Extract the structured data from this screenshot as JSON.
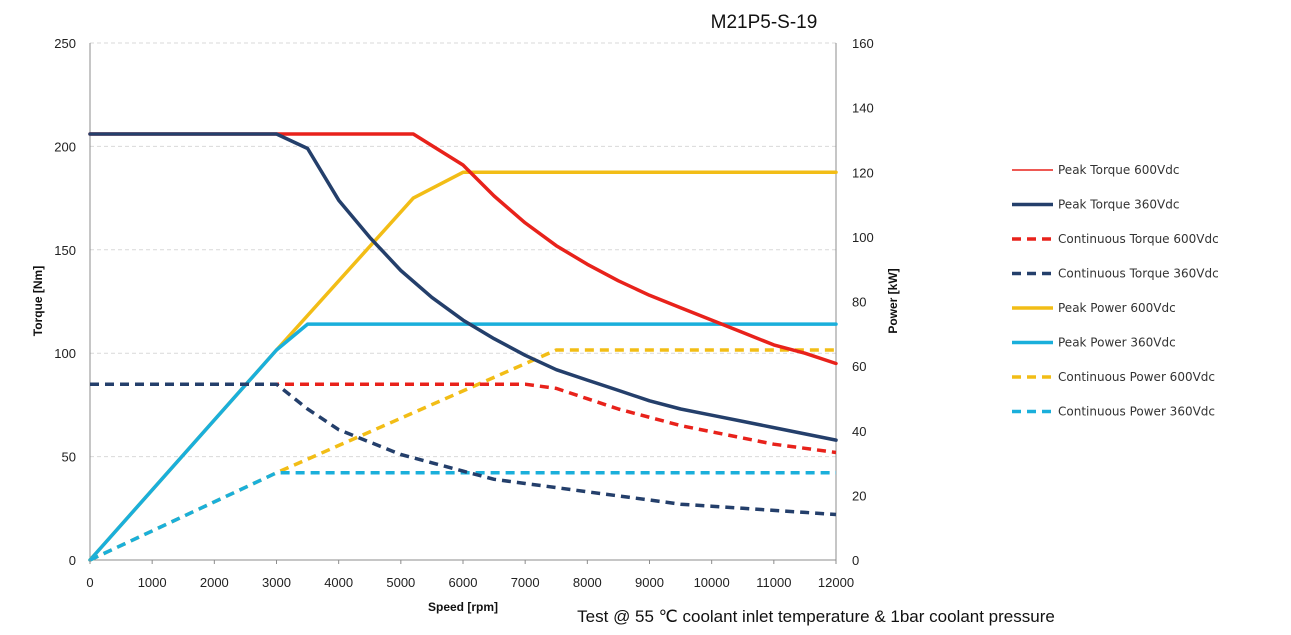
{
  "chart_data": {
    "type": "line",
    "title": "M21P5-S-19",
    "xlabel": "Speed [rpm]",
    "ylabel": "Torque [Nm]",
    "y2label": "Power [kW]",
    "xlim": [
      0,
      12000
    ],
    "ylim": [
      0,
      250
    ],
    "y2lim": [
      0,
      160
    ],
    "xticks": [
      "0",
      "1000",
      "2000",
      "3000",
      "4000",
      "5000",
      "6000",
      "7000",
      "8000",
      "9000",
      "10000",
      "11000",
      "12000"
    ],
    "yticks": [
      "0",
      "50",
      "100",
      "150",
      "200",
      "250"
    ],
    "y2ticks": [
      "0",
      "20",
      "40",
      "60",
      "80",
      "100",
      "120",
      "140",
      "160"
    ],
    "grid": "horizontal dashed",
    "legend_position": "right",
    "note": "Test @ 55 ℃ coolant inlet temperature & 1bar coolant pressure",
    "series": [
      {
        "name": "Peak Torque 600Vdc",
        "axis": "torque",
        "color": "#e8221b",
        "style": "solid",
        "legend_thin": true,
        "x": [
          0,
          3000,
          5200,
          6000,
          6500,
          7000,
          7500,
          8000,
          8500,
          9000,
          9500,
          10000,
          10500,
          11000,
          11500,
          12000
        ],
        "y": [
          206,
          206,
          206,
          191,
          176,
          163,
          152,
          143,
          135,
          128,
          122,
          116,
          110,
          104,
          100,
          95
        ]
      },
      {
        "name": "Peak Torque 360Vdc",
        "axis": "torque",
        "color": "#243f6b",
        "style": "solid",
        "x": [
          0,
          3000,
          3500,
          4000,
          4500,
          5000,
          5500,
          6000,
          6500,
          7000,
          7500,
          8000,
          8500,
          9000,
          9500,
          10000,
          10500,
          11000,
          11500,
          12000
        ],
        "y": [
          206,
          206,
          199,
          174,
          156,
          140,
          127,
          116,
          107,
          99,
          92,
          87,
          82,
          77,
          73,
          70,
          67,
          64,
          61,
          58
        ]
      },
      {
        "name": "Continuous Torque 600Vdc",
        "axis": "torque",
        "color": "#e8221b",
        "style": "dashed",
        "x": [
          0,
          3000,
          7000,
          7500,
          8000,
          8500,
          9000,
          9500,
          10000,
          10500,
          11000,
          11500,
          12000
        ],
        "y": [
          85,
          85,
          85,
          83,
          78,
          73,
          69,
          65,
          62,
          59,
          56,
          54,
          52
        ]
      },
      {
        "name": "Continuous Torque 360Vdc",
        "axis": "torque",
        "color": "#243f6b",
        "style": "dashed",
        "x": [
          0,
          3000,
          3500,
          4000,
          4500,
          5000,
          5500,
          6000,
          6500,
          7000,
          7500,
          8000,
          8500,
          9000,
          9500,
          10000,
          10500,
          11000,
          11500,
          12000
        ],
        "y": [
          85,
          85,
          73,
          63,
          57,
          51,
          47,
          43,
          39,
          37,
          35,
          33,
          31,
          29,
          27,
          26,
          25,
          24,
          23,
          22
        ]
      },
      {
        "name": "Peak Power 600Vdc",
        "axis": "power",
        "color": "#f2bd16",
        "style": "solid",
        "x": [
          0,
          3000,
          5200,
          6000,
          12000
        ],
        "y": [
          0,
          65,
          112,
          120,
          120
        ]
      },
      {
        "name": "Peak Power 360Vdc",
        "axis": "power",
        "color": "#1aafdb",
        "style": "solid",
        "x": [
          0,
          3000,
          3500,
          12000
        ],
        "y": [
          0,
          65,
          73,
          73
        ]
      },
      {
        "name": "Continuous Power 600Vdc",
        "axis": "power",
        "color": "#f2bd16",
        "style": "dashed",
        "x": [
          0,
          3000,
          7500,
          12000
        ],
        "y": [
          0,
          27,
          65,
          65
        ]
      },
      {
        "name": "Continuous Power 360Vdc",
        "axis": "power",
        "color": "#1aafdb",
        "style": "dashed",
        "x": [
          0,
          3000,
          12000
        ],
        "y": [
          0,
          27,
          27
        ]
      }
    ]
  }
}
